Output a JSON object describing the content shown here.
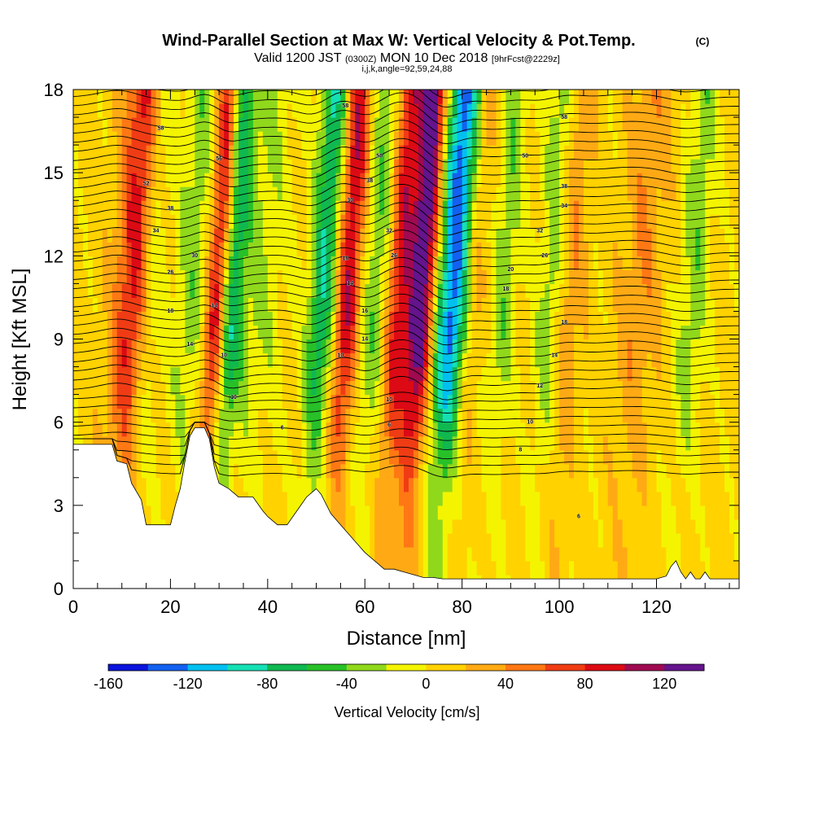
{
  "header": {
    "title": "Wind-Parallel Section at Max W: Vertical Velocity & Pot.Temp.",
    "copyright": "(C)",
    "subtitle_pre": "Valid 1200 JST",
    "subtitle_zulu": "(0300Z)",
    "subtitle_date": "MON 10 Dec 2018",
    "subtitle_fcst": "[9hrFcst@2229z]",
    "subtitle2": "i,j,k,angle=92,59,24,88"
  },
  "chart_data": {
    "type": "heatmap",
    "xlabel": "Distance [nm]",
    "ylabel": "Height [Kft MSL]",
    "xlim": [
      0,
      137
    ],
    "ylim": [
      0,
      18
    ],
    "x_ticks": [
      0,
      20,
      40,
      60,
      80,
      100,
      120
    ],
    "y_ticks": [
      0,
      3,
      6,
      9,
      12,
      15,
      18
    ],
    "grid": false,
    "colorbar": {
      "label": "Vertical Velocity [cm/s]",
      "placement": "bottom",
      "range": [
        -160,
        140
      ],
      "step": 20,
      "tick_labels": [
        -160,
        -120,
        -80,
        -40,
        0,
        40,
        80,
        120
      ],
      "colors": [
        "#0a14dc",
        "#1460f0",
        "#00c0f0",
        "#14e0b4",
        "#10b850",
        "#28c028",
        "#90d81c",
        "#f4f400",
        "#ffd200",
        "#ffaa14",
        "#ff7814",
        "#f03c14",
        "#dc0a14",
        "#a00a50",
        "#64148c"
      ]
    },
    "terrain_kft": [
      [
        0,
        5.2
      ],
      [
        8,
        5.2
      ],
      [
        9,
        4.6
      ],
      [
        11,
        4.5
      ],
      [
        12,
        3.8
      ],
      [
        14,
        3.2
      ],
      [
        15,
        2.3
      ],
      [
        20,
        2.3
      ],
      [
        21,
        3.0
      ],
      [
        22,
        3.6
      ],
      [
        23,
        4.6
      ],
      [
        24,
        5.5
      ],
      [
        25,
        5.8
      ],
      [
        27,
        5.8
      ],
      [
        28,
        5.4
      ],
      [
        29,
        4.4
      ],
      [
        30,
        3.8
      ],
      [
        32,
        3.6
      ],
      [
        34,
        3.3
      ],
      [
        37,
        3.3
      ],
      [
        39,
        2.8
      ],
      [
        40,
        2.6
      ],
      [
        42,
        2.3
      ],
      [
        44,
        2.3
      ],
      [
        46,
        2.8
      ],
      [
        48,
        3.3
      ],
      [
        50,
        3.6
      ],
      [
        51,
        3.4
      ],
      [
        53,
        2.7
      ],
      [
        55,
        2.3
      ],
      [
        58,
        1.7
      ],
      [
        60,
        1.3
      ],
      [
        62,
        1.0
      ],
      [
        64,
        0.7
      ],
      [
        66,
        0.7
      ],
      [
        68,
        0.6
      ],
      [
        70,
        0.5
      ],
      [
        72,
        0.4
      ],
      [
        74,
        0.4
      ],
      [
        76,
        0.35
      ],
      [
        78,
        0.35
      ],
      [
        80,
        0.35
      ],
      [
        84,
        0.35
      ],
      [
        88,
        0.35
      ],
      [
        90,
        0.35
      ],
      [
        95,
        0.35
      ],
      [
        100,
        0.35
      ],
      [
        110,
        0.35
      ],
      [
        120,
        0.35
      ],
      [
        122,
        0.45
      ],
      [
        123,
        0.8
      ],
      [
        124,
        1.0
      ],
      [
        125,
        0.6
      ],
      [
        126,
        0.35
      ],
      [
        127,
        0.6
      ],
      [
        128,
        0.35
      ],
      [
        129,
        0.35
      ],
      [
        130,
        0.6
      ],
      [
        131,
        0.35
      ],
      [
        137,
        0.35
      ]
    ],
    "features": [
      {
        "x": 11,
        "width": 4,
        "w": 90
      },
      {
        "x": 14,
        "width": 3,
        "w": -50
      },
      {
        "x": 23,
        "width": 4,
        "w": -40
      },
      {
        "x": 28,
        "width": 2.5,
        "w": 100
      },
      {
        "x": 31,
        "width": 2.5,
        "w": -80
      },
      {
        "x": 36,
        "width": 6,
        "w": -30
      },
      {
        "x": 50,
        "width": 3,
        "w": -90
      },
      {
        "x": 55,
        "width": 3,
        "w": 110
      },
      {
        "x": 60,
        "width": 5,
        "w": -50
      },
      {
        "x": 65,
        "width": 2.5,
        "w": 90
      },
      {
        "x": 70,
        "width": 3,
        "w": 140
      },
      {
        "x": 77,
        "width": 4,
        "w": -160
      },
      {
        "x": 80,
        "width": 3,
        "w": 70
      },
      {
        "x": 87,
        "width": 3,
        "w": -40
      },
      {
        "x": 97,
        "width": 3,
        "w": -50
      },
      {
        "x": 100,
        "width": 3,
        "w": 40
      },
      {
        "x": 115,
        "width": 4,
        "w": 30
      },
      {
        "x": 126,
        "width": 3,
        "w": -40
      }
    ],
    "theta_contour_labels": [
      {
        "x": 18,
        "y": 16.6,
        "text": "58"
      },
      {
        "x": 30,
        "y": 15.5,
        "text": "56"
      },
      {
        "x": 15,
        "y": 14.6,
        "text": "52"
      },
      {
        "x": 20,
        "y": 13.7,
        "text": "38"
      },
      {
        "x": 17,
        "y": 12.9,
        "text": "34"
      },
      {
        "x": 25,
        "y": 12.0,
        "text": "30"
      },
      {
        "x": 20,
        "y": 11.4,
        "text": "26"
      },
      {
        "x": 20,
        "y": 10.0,
        "text": "18"
      },
      {
        "x": 29,
        "y": 10.2,
        "text": "14"
      },
      {
        "x": 24,
        "y": 8.8,
        "text": "14"
      },
      {
        "x": 31,
        "y": 8.4,
        "text": "10"
      },
      {
        "x": 33,
        "y": 6.9,
        "text": "10"
      },
      {
        "x": 43,
        "y": 5.8,
        "text": "6"
      },
      {
        "x": 56,
        "y": 17.4,
        "text": "58"
      },
      {
        "x": 63,
        "y": 15.6,
        "text": "50"
      },
      {
        "x": 61,
        "y": 14.7,
        "text": "38"
      },
      {
        "x": 57,
        "y": 14.0,
        "text": "30"
      },
      {
        "x": 65,
        "y": 12.9,
        "text": "32"
      },
      {
        "x": 66,
        "y": 12.0,
        "text": "26"
      },
      {
        "x": 56,
        "y": 11.9,
        "text": "18"
      },
      {
        "x": 57,
        "y": 11.0,
        "text": "14"
      },
      {
        "x": 60,
        "y": 10.0,
        "text": "16"
      },
      {
        "x": 60,
        "y": 9.0,
        "text": "14"
      },
      {
        "x": 55,
        "y": 8.4,
        "text": "10"
      },
      {
        "x": 65,
        "y": 6.8,
        "text": "10"
      },
      {
        "x": 65,
        "y": 5.9,
        "text": "6"
      },
      {
        "x": 101,
        "y": 17.0,
        "text": "58"
      },
      {
        "x": 93,
        "y": 15.6,
        "text": "50"
      },
      {
        "x": 101,
        "y": 14.5,
        "text": "38"
      },
      {
        "x": 101,
        "y": 13.8,
        "text": "34"
      },
      {
        "x": 96,
        "y": 12.9,
        "text": "32"
      },
      {
        "x": 97,
        "y": 12.0,
        "text": "26"
      },
      {
        "x": 90,
        "y": 11.5,
        "text": "20"
      },
      {
        "x": 89,
        "y": 10.8,
        "text": "18"
      },
      {
        "x": 101,
        "y": 9.6,
        "text": "18"
      },
      {
        "x": 99,
        "y": 8.4,
        "text": "14"
      },
      {
        "x": 96,
        "y": 7.3,
        "text": "12"
      },
      {
        "x": 94,
        "y": 6.0,
        "text": "10"
      },
      {
        "x": 92,
        "y": 5.0,
        "text": "8"
      },
      {
        "x": 104,
        "y": 2.6,
        "text": "6"
      }
    ]
  }
}
